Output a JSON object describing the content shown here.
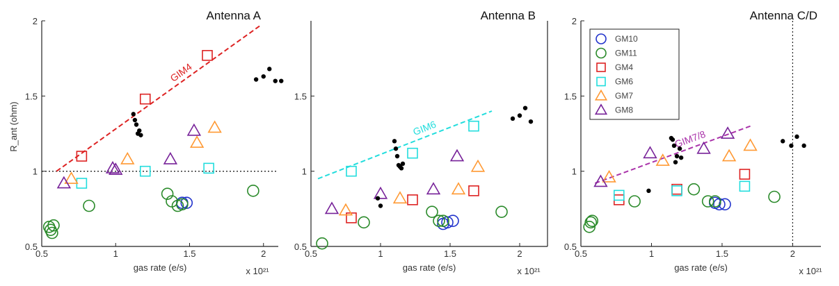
{
  "series_styles": [
    {
      "key": "GM10",
      "shape": "circle",
      "color": "#2233cc"
    },
    {
      "key": "GM11",
      "shape": "circle",
      "color": "#2a8a2a"
    },
    {
      "key": "GM4",
      "shape": "square",
      "color": "#dd2222"
    },
    {
      "key": "GM6",
      "shape": "square",
      "color": "#22dddd"
    },
    {
      "key": "GM7",
      "shape": "triangle",
      "color": "#ff9933"
    },
    {
      "key": "GM8",
      "shape": "triangle",
      "color": "#772299"
    },
    {
      "key": "black",
      "shape": "dot",
      "color": "#000000"
    }
  ],
  "chart_data": [
    {
      "type": "scatter",
      "title": "Antenna A",
      "xlabel": "gas rate (e/s)",
      "ylabel": "R_ant (ohm)",
      "xlim": [
        0.5,
        2.1
      ],
      "ylim": [
        0.5,
        2.0
      ],
      "xticks": [
        0.5,
        1,
        1.5,
        2
      ],
      "xtick_labels": [
        "0.5",
        "1",
        "1.5",
        "2"
      ],
      "yticks": [
        0.5,
        1,
        1.5,
        2
      ],
      "ytick_labels": [
        "0.5",
        "1",
        "1.5",
        "2"
      ],
      "x_multiplier": "x 10²¹",
      "hline": 1.0,
      "fit_line": {
        "x": [
          0.6,
          1.98
        ],
        "y": [
          1.0,
          1.97
        ],
        "color": "#dd2222",
        "label": "GIM4"
      },
      "series": [
        {
          "key": "GM10",
          "x": [
            1.45,
            1.48
          ],
          "y": [
            0.79,
            0.79
          ]
        },
        {
          "key": "GM11",
          "x": [
            0.55,
            0.56,
            0.57,
            0.58,
            0.82,
            1.35,
            1.38,
            1.42,
            1.45,
            1.93
          ],
          "y": [
            0.63,
            0.61,
            0.59,
            0.64,
            0.77,
            0.85,
            0.8,
            0.77,
            0.78,
            0.87
          ]
        },
        {
          "key": "GM4",
          "x": [
            0.77,
            1.2,
            1.62
          ],
          "y": [
            1.1,
            1.48,
            1.77
          ]
        },
        {
          "key": "GM6",
          "x": [
            0.77,
            1.2,
            1.63
          ],
          "y": [
            0.92,
            1.0,
            1.02
          ]
        },
        {
          "key": "GM7",
          "x": [
            0.7,
            1.08,
            1.55,
            1.67
          ],
          "y": [
            0.95,
            1.08,
            1.19,
            1.29
          ]
        },
        {
          "key": "GM8",
          "x": [
            0.65,
            0.98,
            1.0,
            1.37,
            1.53
          ],
          "y": [
            0.92,
            1.02,
            1.01,
            1.08,
            1.27
          ]
        },
        {
          "key": "black",
          "x": [
            1.12,
            1.13,
            1.14,
            1.15,
            1.16,
            1.17,
            1.95,
            2.0,
            2.04,
            2.08,
            2.12
          ],
          "y": [
            1.38,
            1.34,
            1.31,
            1.25,
            1.27,
            1.24,
            1.61,
            1.63,
            1.68,
            1.6,
            1.6
          ]
        }
      ]
    },
    {
      "type": "scatter",
      "title": "Antenna B",
      "xlabel": "gas rate (e/s)",
      "ylabel": "",
      "xlim": [
        0.5,
        2.2
      ],
      "ylim": [
        0.5,
        2.0
      ],
      "xticks": [
        0.5,
        1,
        1.5,
        2
      ],
      "xtick_labels": [
        "0.5",
        "1",
        "1.5",
        "2"
      ],
      "yticks": [
        0.5,
        1,
        1.5
      ],
      "ytick_labels": [
        "0.5",
        "1",
        "1.5"
      ],
      "x_multiplier": "x 10²¹",
      "hline": null,
      "fit_line": {
        "x": [
          0.55,
          1.8
        ],
        "y": [
          0.95,
          1.4
        ],
        "color": "#22dddd",
        "label": "GIM6"
      },
      "series": [
        {
          "key": "GM10",
          "x": [
            1.45,
            1.48,
            1.52
          ],
          "y": [
            0.65,
            0.66,
            0.67
          ]
        },
        {
          "key": "GM11",
          "x": [
            0.58,
            0.88,
            1.37,
            1.42,
            1.45,
            1.87
          ],
          "y": [
            0.52,
            0.66,
            0.73,
            0.67,
            0.67,
            0.73
          ]
        },
        {
          "key": "GM4",
          "x": [
            0.79,
            1.23,
            1.67
          ],
          "y": [
            0.69,
            0.81,
            0.87
          ]
        },
        {
          "key": "GM6",
          "x": [
            0.79,
            1.23,
            1.67
          ],
          "y": [
            1.0,
            1.12,
            1.3
          ]
        },
        {
          "key": "GM7",
          "x": [
            0.75,
            1.14,
            1.56,
            1.7
          ],
          "y": [
            0.74,
            0.82,
            0.88,
            1.03
          ]
        },
        {
          "key": "GM8",
          "x": [
            0.65,
            1.0,
            1.38,
            1.55
          ],
          "y": [
            0.75,
            0.85,
            0.88,
            1.1
          ]
        },
        {
          "key": "black",
          "x": [
            1.1,
            1.11,
            1.12,
            1.13,
            1.14,
            1.15,
            1.16,
            0.98,
            1.0,
            1.95,
            2.0,
            2.04,
            2.08
          ],
          "y": [
            1.2,
            1.15,
            1.1,
            1.04,
            1.03,
            1.02,
            1.05,
            0.82,
            0.77,
            1.35,
            1.37,
            1.42,
            1.33
          ]
        }
      ]
    },
    {
      "type": "scatter",
      "title": "Antenna C/D",
      "xlabel": "gas rate (e/s)",
      "ylabel": "",
      "xlim": [
        0.5,
        2.2
      ],
      "ylim": [
        0.5,
        2.0
      ],
      "xticks": [
        0.5,
        1,
        1.5,
        2
      ],
      "xtick_labels": [
        "0.5",
        "1",
        "1.5",
        "2"
      ],
      "yticks": [
        0.5,
        1,
        1.5,
        2
      ],
      "ytick_labels": [
        "0.5",
        "1",
        "1.5",
        "2"
      ],
      "x_multiplier": "x 10²¹",
      "vline": 2.0,
      "fit_line": {
        "x": [
          0.6,
          1.7
        ],
        "y": [
          0.92,
          1.3
        ],
        "color": "#aa33aa",
        "label": "GIM7/8"
      },
      "series": [
        {
          "key": "GM10",
          "x": [
            1.45,
            1.48,
            1.52
          ],
          "y": [
            0.79,
            0.78,
            0.78
          ]
        },
        {
          "key": "GM11",
          "x": [
            0.56,
            0.57,
            0.58,
            0.88,
            1.3,
            1.4,
            1.45,
            1.87
          ],
          "y": [
            0.63,
            0.66,
            0.67,
            0.8,
            0.88,
            0.8,
            0.8,
            0.83
          ]
        },
        {
          "key": "GM4",
          "x": [
            0.77,
            1.18,
            1.66
          ],
          "y": [
            0.81,
            0.88,
            0.98
          ]
        },
        {
          "key": "GM6",
          "x": [
            0.77,
            1.18,
            1.66
          ],
          "y": [
            0.84,
            0.87,
            0.9
          ]
        },
        {
          "key": "GM7",
          "x": [
            0.7,
            1.08,
            1.55,
            1.7
          ],
          "y": [
            0.96,
            1.07,
            1.1,
            1.17
          ]
        },
        {
          "key": "GM8",
          "x": [
            0.64,
            0.99,
            1.37,
            1.54
          ],
          "y": [
            0.93,
            1.12,
            1.15,
            1.25
          ]
        },
        {
          "key": "black",
          "x": [
            1.15,
            1.16,
            1.18,
            1.2,
            1.14,
            1.17,
            1.21,
            0.98,
            1.93,
            1.99,
            2.03,
            2.08
          ],
          "y": [
            1.21,
            1.17,
            1.1,
            1.15,
            1.22,
            1.06,
            1.09,
            0.87,
            1.2,
            1.17,
            1.23,
            1.17
          ]
        }
      ],
      "legend": {
        "placement": "top-left",
        "entries": [
          {
            "key": "GM10",
            "label": "GM10"
          },
          {
            "key": "GM11",
            "label": "GM11"
          },
          {
            "key": "GM4",
            "label": "GM4"
          },
          {
            "key": "GM6",
            "label": "GM6"
          },
          {
            "key": "GM7",
            "label": "GM7"
          },
          {
            "key": "GM8",
            "label": "GM8"
          }
        ]
      }
    }
  ]
}
